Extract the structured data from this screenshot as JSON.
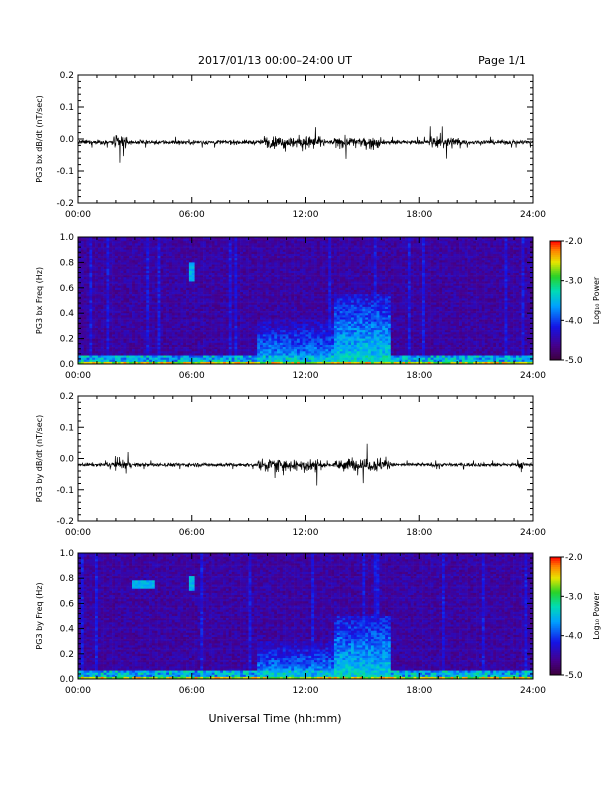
{
  "header": {
    "title": "2017/01/13  00:00–24:00 UT",
    "page": "Page 1/1"
  },
  "x_axis_title": "Universal Time (hh:mm)",
  "chart_data": [
    {
      "type": "line",
      "ylabel": "PG3 bx dB/dt (nT/sec)",
      "x_ticks": [
        "00:00",
        "06:00",
        "12:00",
        "18:00",
        "24:00"
      ],
      "y_ticks": [
        "0.2",
        "0.1",
        "0.0",
        "-0.1",
        "-0.2"
      ],
      "ylim": [
        -0.2,
        0.2
      ],
      "xlim_hours": [
        0,
        24
      ],
      "baseline": -0.01,
      "activity": [
        {
          "hours": [
            1.8,
            2.6
          ],
          "amplitude": 0.05
        },
        {
          "hours": [
            9.8,
            13.0
          ],
          "amplitude": 0.05
        },
        {
          "hours": [
            13.5,
            16.0
          ],
          "amplitude": 0.04
        },
        {
          "hours": [
            18.5,
            20.2
          ],
          "amplitude": 0.04
        }
      ],
      "quiet_amplitude": 0.012,
      "color": "#000000"
    },
    {
      "type": "heatmap",
      "ylabel": "PG3 bx Freq (Hz)",
      "x_ticks": [
        "00:00",
        "06:00",
        "12:00",
        "18:00",
        "24:00"
      ],
      "y_ticks": [
        "1.0",
        "0.8",
        "0.6",
        "0.4",
        "0.2",
        "0.0"
      ],
      "ylim": [
        0.0,
        1.0
      ],
      "xlim_hours": [
        0,
        24
      ],
      "colorbar": {
        "label": "Log₁₀ Power",
        "ticks": [
          "-2.0",
          "-3.0",
          "-4.0",
          "-5.0"
        ],
        "range": [
          -5.0,
          -2.0
        ]
      },
      "features": [
        {
          "hours": [
            9.5,
            13.5
          ],
          "freq_max": 0.35,
          "level": -3.8
        },
        {
          "hours": [
            13.5,
            16.5
          ],
          "freq_max": 0.55,
          "level": -3.6
        },
        {
          "hours": [
            5.8,
            6.2
          ],
          "freq_range": [
            0.65,
            0.8
          ],
          "level": -3.7
        }
      ]
    },
    {
      "type": "line",
      "ylabel": "PG3 by dB/dt (nT/sec)",
      "x_ticks": [
        "00:00",
        "06:00",
        "12:00",
        "18:00",
        "24:00"
      ],
      "y_ticks": [
        "0.2",
        "0.1",
        "0.0",
        "-0.1",
        "-0.2"
      ],
      "ylim": [
        -0.2,
        0.2
      ],
      "xlim_hours": [
        0,
        24
      ],
      "baseline": -0.02,
      "activity": [
        {
          "hours": [
            1.5,
            2.8
          ],
          "amplitude": 0.03
        },
        {
          "hours": [
            9.5,
            13.0
          ],
          "amplitude": 0.05
        },
        {
          "hours": [
            13.5,
            16.5
          ],
          "amplitude": 0.05
        },
        {
          "hours": [
            23.2,
            23.5
          ],
          "amplitude": 0.04
        }
      ],
      "quiet_amplitude": 0.01,
      "color": "#000000"
    },
    {
      "type": "heatmap",
      "ylabel": "PG3 by Freq (Hz)",
      "x_ticks": [
        "00:00",
        "06:00",
        "12:00",
        "18:00",
        "24:00"
      ],
      "y_ticks": [
        "1.0",
        "0.8",
        "0.6",
        "0.4",
        "0.2",
        "0.0"
      ],
      "ylim": [
        0.0,
        1.0
      ],
      "xlim_hours": [
        0,
        24
      ],
      "colorbar": {
        "label": "Log₁₀ Power",
        "ticks": [
          "-2.0",
          "-3.0",
          "-4.0",
          "-5.0"
        ],
        "range": [
          -5.0,
          -2.0
        ]
      },
      "features": [
        {
          "hours": [
            9.5,
            13.5
          ],
          "freq_max": 0.3,
          "level": -3.8
        },
        {
          "hours": [
            13.5,
            16.5
          ],
          "freq_max": 0.5,
          "level": -3.6
        },
        {
          "hours": [
            2.8,
            4.0
          ],
          "freq_range": [
            0.72,
            0.78
          ],
          "level": -3.7
        },
        {
          "hours": [
            5.8,
            6.2
          ],
          "freq_range": [
            0.7,
            0.82
          ],
          "level": -3.7
        }
      ]
    }
  ]
}
